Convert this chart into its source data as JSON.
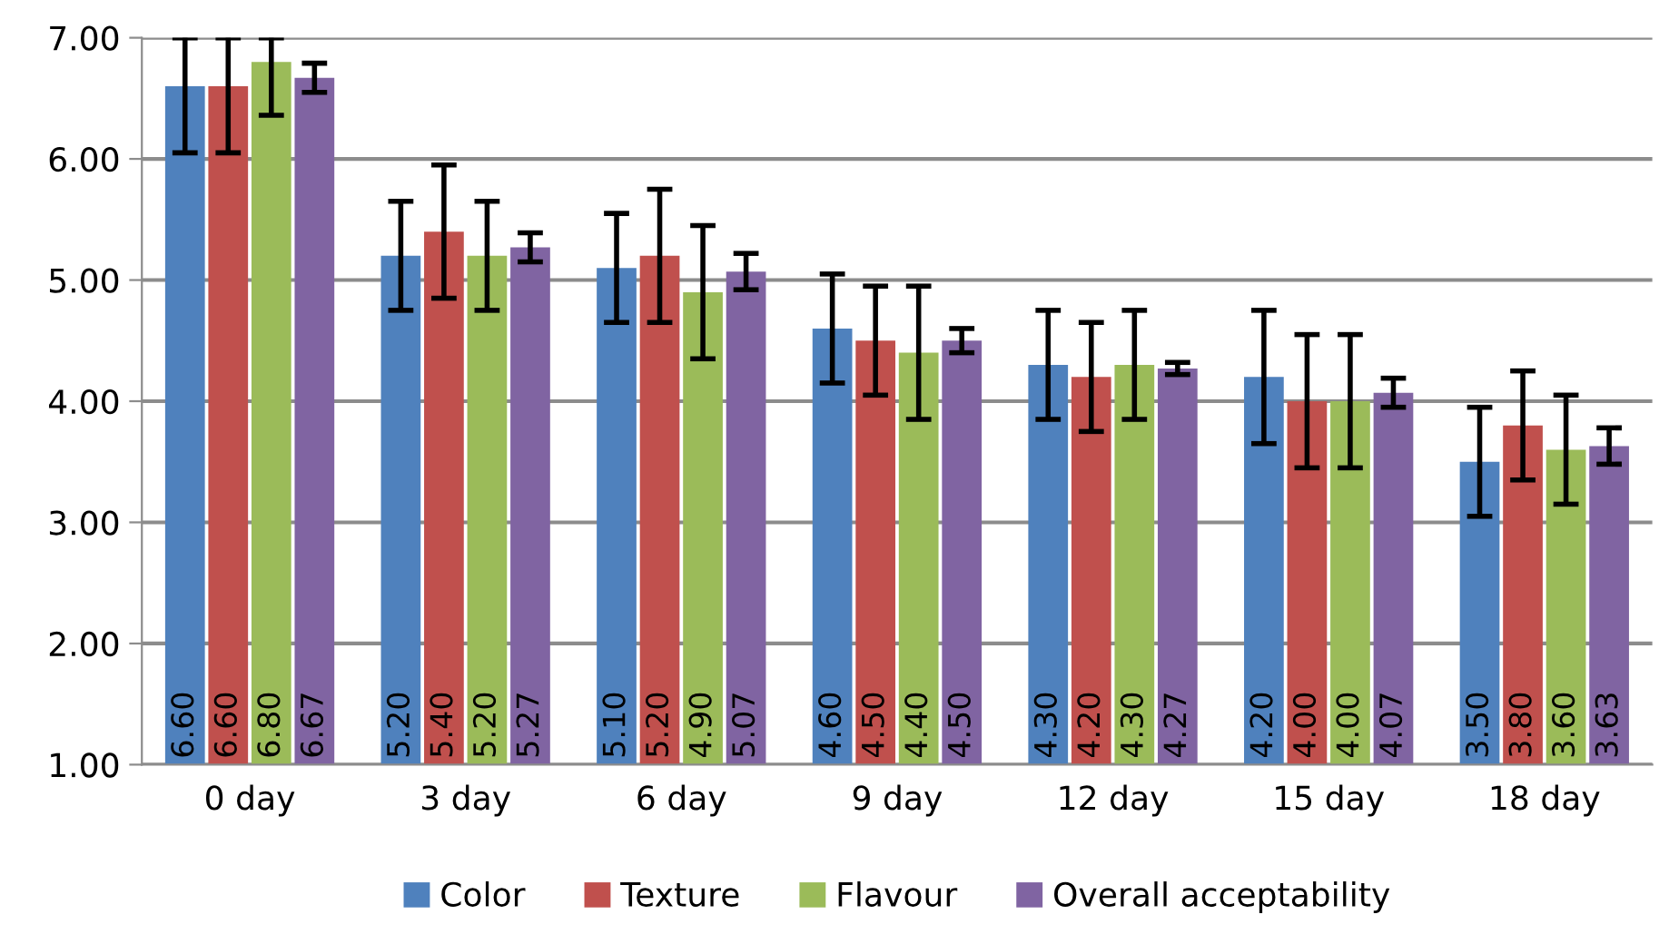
{
  "chart_data": {
    "type": "bar",
    "categories": [
      "0 day",
      "3 day",
      "6 day",
      "9 day",
      "12 day",
      "15 day",
      "18 day"
    ],
    "series": [
      {
        "name": "Color",
        "color": "#4f81bd",
        "values": [
          6.6,
          5.2,
          5.1,
          4.6,
          4.3,
          4.2,
          3.5
        ],
        "errors": [
          [
            6.05,
            7.0
          ],
          0.45,
          0.45,
          0.45,
          0.45,
          0.55,
          0.45
        ],
        "value_labels": [
          "6.60",
          "5.20",
          "5.10",
          "4.60",
          "4.30",
          "4.20",
          "3.50"
        ]
      },
      {
        "name": "Texture",
        "color": "#c0504d",
        "values": [
          6.6,
          5.4,
          5.2,
          4.5,
          4.2,
          4.0,
          3.8
        ],
        "errors": [
          [
            6.05,
            7.0
          ],
          0.55,
          0.55,
          0.45,
          0.45,
          0.55,
          0.45
        ],
        "value_labels": [
          "6.60",
          "5.40",
          "5.20",
          "4.50",
          "4.20",
          "4.00",
          "3.80"
        ]
      },
      {
        "name": "Flavour",
        "color": "#9bbb59",
        "values": [
          6.8,
          5.2,
          4.9,
          4.4,
          4.3,
          4.0,
          3.6
        ],
        "errors": [
          [
            6.36,
            7.0
          ],
          0.45,
          0.55,
          0.55,
          0.45,
          0.55,
          0.45
        ],
        "value_labels": [
          "6.80",
          "5.20",
          "4.90",
          "4.40",
          "4.30",
          "4.00",
          "3.60"
        ]
      },
      {
        "name": "Overall acceptability",
        "color": "#8064a2",
        "values": [
          6.67,
          5.27,
          5.07,
          4.5,
          4.27,
          4.07,
          3.63
        ],
        "errors": [
          0.12,
          0.12,
          0.15,
          0.1,
          0.05,
          0.12,
          0.15
        ],
        "value_labels": [
          "6.67",
          "5.27",
          "5.07",
          "4.50",
          "4.27",
          "4.07",
          "3.63"
        ]
      }
    ],
    "ylim": [
      1.0,
      7.0
    ],
    "yticks": [
      {
        "value": 1,
        "label": "1.00"
      },
      {
        "value": 2,
        "label": "2.00"
      },
      {
        "value": 3,
        "label": "3.00"
      },
      {
        "value": 4,
        "label": "4.00"
      },
      {
        "value": 5,
        "label": "5.00"
      },
      {
        "value": 6,
        "label": "6.00"
      },
      {
        "value": 7,
        "label": "7.00"
      }
    ],
    "grid": "y",
    "legend": "bottom"
  }
}
